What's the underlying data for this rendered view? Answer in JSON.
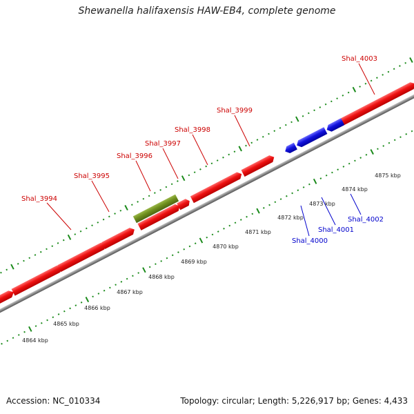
{
  "title": "Shewanella halifaxensis HAW-EB4, complete genome",
  "footer": {
    "accession": "Accession: NC_010334",
    "topology": "Topology: circular; Length: 5,226,917 bp; Genes: 4,433"
  },
  "colors": {
    "forward_gene": "#ee1111",
    "reverse_gene": "#1111dd",
    "rna_gene": "#6f8f1e",
    "forward_label": "#cc0000",
    "reverse_label": "#0000cc",
    "tick": "#1a8a1a",
    "backbone": "#8a8a8a"
  },
  "scale_labels": [
    "4864 kbp",
    "4865 kbp",
    "4866 kbp",
    "4867 kbp",
    "4868 kbp",
    "4869 kbp",
    "4870 kbp",
    "4871 kbp",
    "4872 kbp",
    "4873 kbp",
    "4874 kbp",
    "4875 kbp"
  ],
  "genes": [
    {
      "name": "Shal_3994",
      "strand": "+"
    },
    {
      "name": "Shal_3995",
      "strand": "+"
    },
    {
      "name": "Shal_3996",
      "strand": "+",
      "type": "rna"
    },
    {
      "name": "Shal_3997",
      "strand": "+"
    },
    {
      "name": "Shal_3998",
      "strand": "+"
    },
    {
      "name": "Shal_3999",
      "strand": "+"
    },
    {
      "name": "Shal_4003",
      "strand": "+"
    },
    {
      "name": "Shal_4000",
      "strand": "-"
    },
    {
      "name": "Shal_4001",
      "strand": "-"
    },
    {
      "name": "Shal_4002",
      "strand": "-"
    }
  ]
}
